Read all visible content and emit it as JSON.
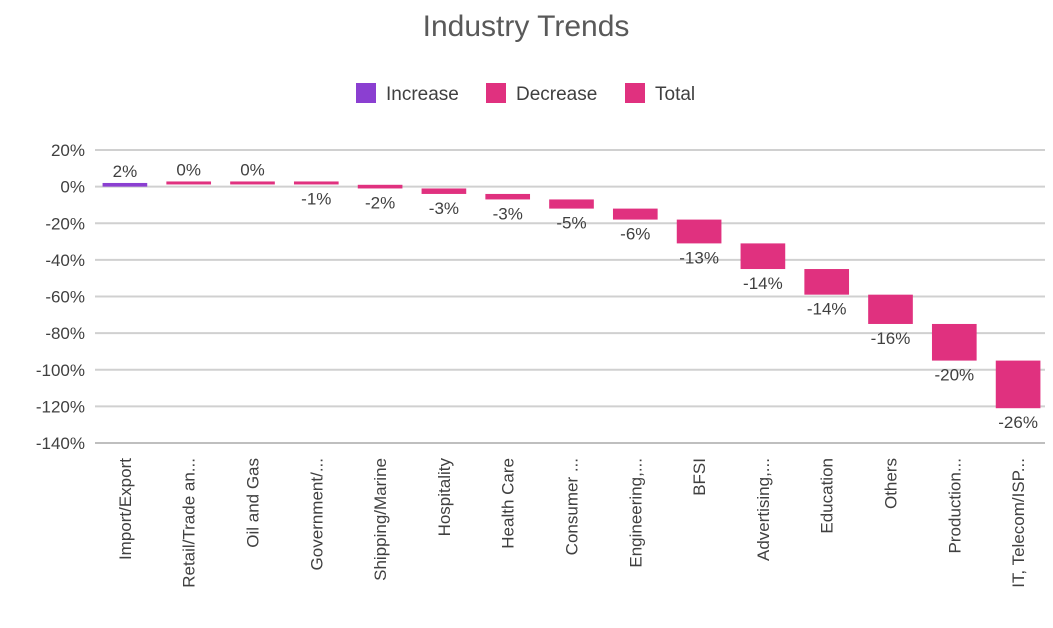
{
  "colors": {
    "increase": "#8B3FD1",
    "decrease": "#E0317F",
    "total": "#E0317F",
    "grid": "#d0d0d0",
    "text": "#404040",
    "title": "#595959"
  },
  "chart_data": {
    "type": "bar",
    "subtype": "waterfall",
    "title": "Industry Trends",
    "legend": {
      "position": "top",
      "entries": [
        {
          "name": "Increase",
          "color_key": "increase"
        },
        {
          "name": "Decrease",
          "color_key": "decrease"
        },
        {
          "name": "Total",
          "color_key": "total"
        }
      ]
    },
    "ylim": [
      -140,
      20
    ],
    "yticks": [
      20,
      0,
      -20,
      -40,
      -60,
      -80,
      -100,
      -120,
      -140
    ],
    "ytick_labels": [
      "20%",
      "0%",
      "-20%",
      "-40%",
      "-60%",
      "-80%",
      "-100%",
      "-120%",
      "-140%"
    ],
    "grid": true,
    "categories": [
      "Import/Export",
      "Retail/Trade an...",
      "Oil and Gas",
      "Government/...",
      "Shipping/Marine",
      "Hospitality",
      "Health Care",
      "Consumer ...",
      "Engineering,...",
      "BFSI",
      "Advertising,...",
      "Education",
      "Others",
      "Production...",
      "IT, Telecom/ISP..."
    ],
    "values": [
      2,
      0,
      0,
      -1,
      -2,
      -3,
      -3,
      -5,
      -6,
      -13,
      -14,
      -14,
      -16,
      -20,
      -26
    ],
    "data_labels": [
      "2%",
      "0%",
      "0%",
      "-1%",
      "-2%",
      "-3%",
      "-3%",
      "-5%",
      "-6%",
      "-13%",
      "-14%",
      "-14%",
      "-16%",
      "-20%",
      "-26%"
    ]
  }
}
